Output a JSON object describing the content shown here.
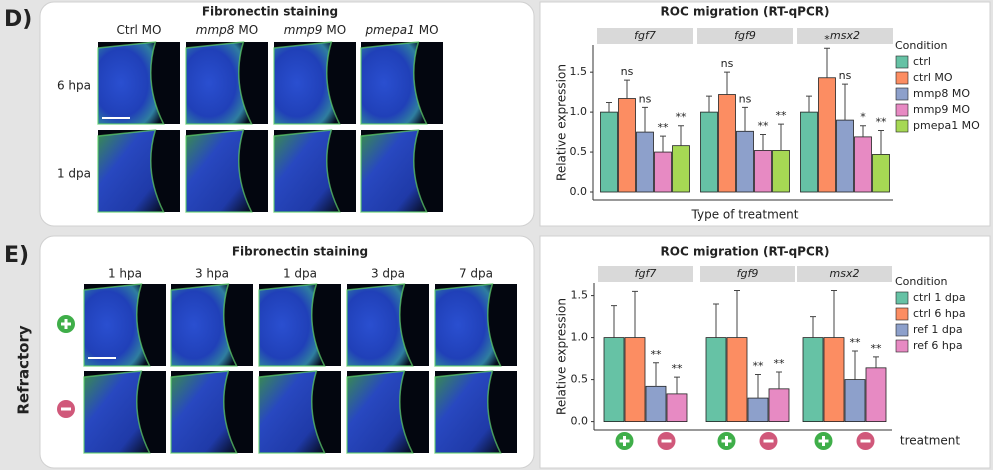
{
  "panel_d": {
    "label": "D)",
    "staining_title": "Fibronectin staining",
    "columns": [
      [
        "Ctrl MO"
      ],
      [
        "mmp8",
        "MO"
      ],
      [
        "mmp9",
        "MO"
      ],
      [
        "pmepa1",
        "MO"
      ]
    ],
    "rows": [
      "6 hpa",
      "1 dpa"
    ]
  },
  "panel_e": {
    "label": "E)",
    "staining_title": "Fibronectin staining",
    "columns": [
      "1 hpa",
      "3 hpa",
      "1 dpa",
      "3 dpa",
      "7 dpa"
    ],
    "row_group": "Refractory",
    "x_axis_label": "treatment"
  },
  "chart_data": [
    {
      "type": "bar",
      "title": "ROC migration (RT-qPCR)",
      "y_label": "Relative expression",
      "x_label": "Type of treatment",
      "categories": [
        "fgf7",
        "fgf9",
        "msx2"
      ],
      "legend_title": "Condition",
      "legend": "right",
      "ylim": [
        -0.1,
        1.84
      ],
      "yticks": [
        {
          "value": 0,
          "label": "0.0"
        },
        {
          "value": 0.5,
          "label": "0.5"
        },
        {
          "value": 1,
          "label": "1.0"
        },
        {
          "value": 1.5,
          "label": "1.5"
        }
      ],
      "series": [
        {
          "name": "ctrl",
          "color": "#66c2a5",
          "values": [
            1.0,
            1.0,
            1.0
          ],
          "errors": [
            0.12,
            0.2,
            0.2
          ],
          "annotations": [
            null,
            null,
            null
          ]
        },
        {
          "name": "ctrl MO",
          "color": "#fc8d62",
          "values": [
            1.17,
            1.22,
            1.43
          ],
          "errors": [
            0.23,
            0.28,
            0.37
          ],
          "annotations": [
            "ns",
            "ns",
            "*"
          ]
        },
        {
          "name": "mmp8 MO",
          "color": "#8da0cb",
          "values": [
            0.75,
            0.76,
            0.9
          ],
          "errors": [
            0.31,
            0.3,
            0.45
          ],
          "annotations": [
            "ns",
            "ns",
            "ns"
          ]
        },
        {
          "name": "mmp9 MO",
          "color": "#e78ac3",
          "values": [
            0.5,
            0.52,
            0.69
          ],
          "errors": [
            0.2,
            0.2,
            0.14
          ],
          "annotations": [
            "**",
            "**",
            "*"
          ]
        },
        {
          "name": "pmepa1 MO",
          "color": "#a6d854",
          "values": [
            0.58,
            0.52,
            0.47
          ],
          "errors": [
            0.25,
            0.33,
            0.3
          ],
          "annotations": [
            "**",
            "**",
            "**"
          ]
        }
      ]
    },
    {
      "type": "bar",
      "title": "ROC migration (RT-qPCR)",
      "y_label": "Relative expression",
      "categories": [
        "fgf7",
        "fgf9",
        "msx2"
      ],
      "legend_title": "Condition",
      "legend": "right",
      "ylim": [
        -0.1,
        1.65
      ],
      "yticks": [
        {
          "value": 0,
          "label": "0.0"
        },
        {
          "value": 0.5,
          "label": "0.5"
        },
        {
          "value": 1,
          "label": "1.0"
        },
        {
          "value": 1.5,
          "label": "1.5"
        }
      ],
      "series": [
        {
          "name": "ctrl 1 dpa",
          "color": "#66c2a5",
          "values": [
            1.0,
            1.0,
            1.0
          ],
          "errors": [
            0.38,
            0.4,
            0.25
          ],
          "annotations": [
            null,
            null,
            null
          ]
        },
        {
          "name": "ctrl 6 hpa",
          "color": "#fc8d62",
          "values": [
            1.0,
            1.0,
            1.0
          ],
          "errors": [
            0.55,
            0.56,
            0.56
          ],
          "annotations": [
            null,
            null,
            null
          ]
        },
        {
          "name": "ref 1 dpa",
          "color": "#8da0cb",
          "values": [
            0.42,
            0.28,
            0.5
          ],
          "errors": [
            0.28,
            0.28,
            0.34
          ],
          "annotations": [
            "**",
            "**",
            "**"
          ]
        },
        {
          "name": "ref 6 hpa",
          "color": "#e78ac3",
          "values": [
            0.33,
            0.39,
            0.64
          ],
          "errors": [
            0.2,
            0.2,
            0.13
          ],
          "annotations": [
            "**",
            "**",
            "**"
          ]
        }
      ]
    }
  ]
}
